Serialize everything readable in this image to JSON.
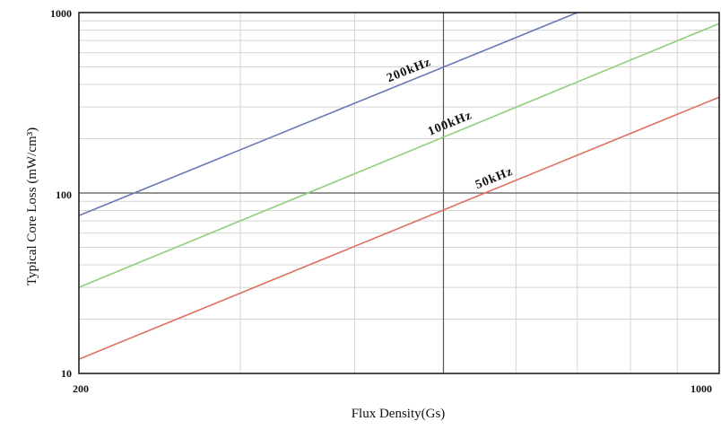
{
  "chart_data": {
    "type": "line",
    "xlabel": "Flux Density(Gs)",
    "ylabel": "Typical Core Loss (mW/cm³)",
    "xscale": "log",
    "yscale": "log",
    "xlim": [
      200,
      1000
    ],
    "ylim": [
      10,
      1000
    ],
    "x_tick_labels": [
      "200",
      "1000"
    ],
    "y_tick_labels": [
      "10",
      "100",
      "1000"
    ],
    "grid": true,
    "series": [
      {
        "name": "200kHz",
        "color": "#6a78b8",
        "x": [
          200,
          700
        ],
        "y": [
          75,
          1000
        ]
      },
      {
        "name": "100kHz",
        "color": "#8fcf7a",
        "x": [
          200,
          1000
        ],
        "y": [
          30,
          870
        ]
      },
      {
        "name": "50kHz",
        "color": "#e0705e",
        "x": [
          200,
          1000
        ],
        "y": [
          12,
          340
        ]
      }
    ]
  }
}
